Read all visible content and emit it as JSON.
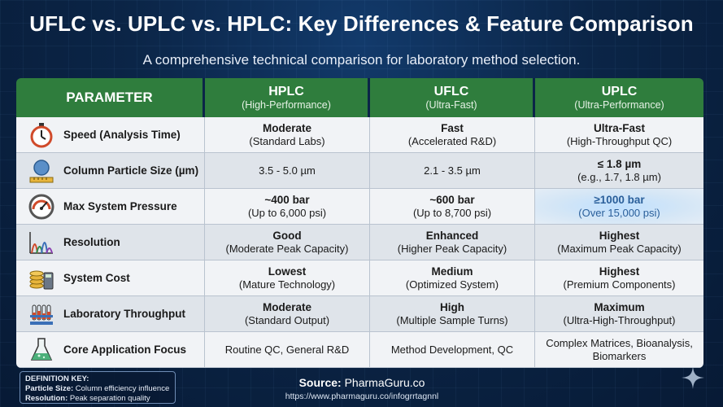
{
  "title": "UFLC vs. UPLC vs. HPLC: Key Differences & Feature Comparison",
  "subtitle": "A comprehensive technical comparison for laboratory method selection.",
  "header": {
    "parameter": "PARAMETER",
    "columns": [
      {
        "name": "HPLC",
        "sub": "(High-Performance)"
      },
      {
        "name": "UFLC",
        "sub": "(Ultra-Fast)"
      },
      {
        "name": "UPLC",
        "sub": "(Ultra-Performance)"
      }
    ]
  },
  "rows": [
    {
      "icon": "stopwatch-icon",
      "parameter": "Speed (Analysis Time)",
      "cells": [
        {
          "main": "Moderate",
          "sub": "(Standard Labs)"
        },
        {
          "main": "Fast",
          "sub": "(Accelerated R&D)"
        },
        {
          "main": "Ultra-Fast",
          "sub": "(High-Throughput QC)"
        }
      ]
    },
    {
      "icon": "particle-ruler-icon",
      "parameter": "Column Particle Size (µm)",
      "cells": [
        {
          "main": "",
          "sub": "3.5 - 5.0 µm"
        },
        {
          "main": "",
          "sub": "2.1 - 3.5 µm"
        },
        {
          "main": "≤ 1.8 µm",
          "sub": "(e.g., 1.7, 1.8 µm)"
        }
      ]
    },
    {
      "icon": "pressure-gauge-icon",
      "parameter": "Max System Pressure",
      "cells": [
        {
          "main": "~400 bar",
          "sub": "(Up to 6,000 psi)"
        },
        {
          "main": "~600 bar",
          "sub": "(Up to 8,700 psi)"
        },
        {
          "main": "≥1000 bar",
          "sub": "(Over 15,000 psi)"
        }
      ]
    },
    {
      "icon": "chromatogram-peaks-icon",
      "parameter": "Resolution",
      "cells": [
        {
          "main": "Good",
          "sub": "(Moderate Peak Capacity)"
        },
        {
          "main": "Enhanced",
          "sub": "(Higher Peak Capacity)"
        },
        {
          "main": "Highest",
          "sub": "(Maximum Peak Capacity)"
        }
      ]
    },
    {
      "icon": "coins-calculator-icon",
      "parameter": "System Cost",
      "cells": [
        {
          "main": "Lowest",
          "sub": "(Mature Technology)"
        },
        {
          "main": "Medium",
          "sub": "(Optimized System)"
        },
        {
          "main": "Highest",
          "sub": "(Premium Components)"
        }
      ]
    },
    {
      "icon": "test-tube-rack-icon",
      "parameter": "Laboratory Throughput",
      "cells": [
        {
          "main": "Moderate",
          "sub": "(Standard Output)"
        },
        {
          "main": "High",
          "sub": "(Multiple Sample Turns)"
        },
        {
          "main": "Maximum",
          "sub": "(Ultra-High-Throughput)"
        }
      ]
    },
    {
      "icon": "flask-icon",
      "parameter": "Core Application Focus",
      "cells": [
        {
          "main": "",
          "sub": "Routine QC, General R&D"
        },
        {
          "main": "",
          "sub": "Method Development, QC"
        },
        {
          "main": "",
          "sub": "Complex Matrices, Bioanalysis, Biomarkers"
        }
      ]
    }
  ],
  "key": {
    "title": "DEFINITION KEY:",
    "items": [
      {
        "term": "Particle Size:",
        "def": "Column efficiency influence"
      },
      {
        "term": "Resolution:",
        "def": "Peak separation quality"
      }
    ]
  },
  "source": {
    "label": "Source:",
    "name": "PharmaGuru.co",
    "url": "https://www.pharmaguru.co/infogrrtagnnl"
  },
  "colors": {
    "header_green": "#2f7d3d",
    "background": "#0b2547",
    "highlight_blue": "#2a5f9a"
  }
}
